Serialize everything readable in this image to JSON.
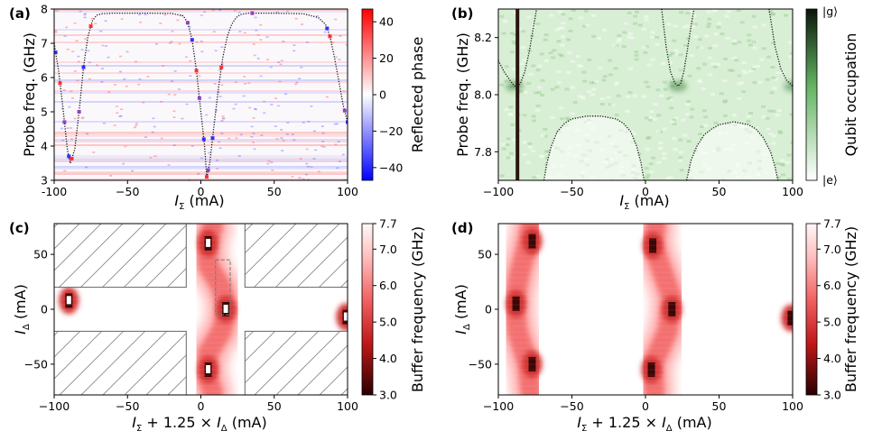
{
  "chart_data": [
    {
      "type": "heatmap",
      "panel": "(a)",
      "xlabel_main": "I",
      "xlabel_sub": "Σ",
      "xlabel_unit": " (mA)",
      "ylabel": "Probe freq. (GHz)",
      "xlim": [
        -100,
        100
      ],
      "ylim": [
        3,
        8
      ],
      "xticks": [
        "-100",
        "−50",
        "0",
        "50",
        "100"
      ],
      "xtick_values": [
        -100,
        -50,
        0,
        50,
        100
      ],
      "yticks": [
        "3",
        "4",
        "5",
        "6",
        "7",
        "8"
      ],
      "ytick_values": [
        3,
        4,
        5,
        6,
        7,
        8
      ],
      "colorbar": {
        "label": "Reflected phase",
        "range": [
          -47,
          47
        ],
        "ticks": [
          "40",
          "20",
          "0",
          "−20",
          "−40"
        ],
        "tick_values": [
          40,
          20,
          0,
          -20,
          -40
        ],
        "colors": [
          "#0000ff",
          "#ffffff",
          "#ff0000"
        ]
      },
      "curve": {
        "x": [
          -100,
          -97,
          -94,
          -91,
          -89,
          -86,
          -83,
          -80,
          -77,
          -74,
          -71,
          -68,
          -60,
          -40,
          -20,
          -12,
          -9,
          -6,
          -3,
          0,
          2.5,
          4,
          6,
          9,
          12,
          15,
          18,
          21,
          24,
          27,
          32,
          50,
          70,
          80,
          85,
          88,
          91,
          94,
          97,
          100
        ],
        "y": [
          7.0,
          6.2,
          5.1,
          3.9,
          3.5,
          3.9,
          5.0,
          6.3,
          7.2,
          7.65,
          7.82,
          7.86,
          7.88,
          7.88,
          7.87,
          7.8,
          7.6,
          7.1,
          6.2,
          5.0,
          4.0,
          3.1,
          3.5,
          4.6,
          5.7,
          6.6,
          7.2,
          7.55,
          7.75,
          7.84,
          7.88,
          7.88,
          7.86,
          7.75,
          7.55,
          7.2,
          6.6,
          5.9,
          5.2,
          4.7
        ]
      }
    },
    {
      "type": "heatmap",
      "panel": "(b)",
      "xlabel_main": "I",
      "xlabel_sub": "Σ",
      "xlabel_unit": " (mA)",
      "ylabel": "Probe freq. (GHz)",
      "xlim": [
        -100,
        100
      ],
      "ylim": [
        7.7,
        8.3
      ],
      "xticks": [
        "−100",
        "−50",
        "0",
        "50",
        "100"
      ],
      "xtick_values": [
        -100,
        -50,
        0,
        50,
        100
      ],
      "yticks": [
        "7.8",
        "8.0",
        "8.2"
      ],
      "ytick_values": [
        7.8,
        8.0,
        8.2
      ],
      "colorbar": {
        "label": "Qubit occupation",
        "top": "|g⟩",
        "bottom": "|e⟩",
        "colors": [
          "#ffffff",
          "#3c9c3c",
          "#0a1a0a"
        ]
      },
      "vertical_line_x": -87,
      "upper_branches": [
        {
          "x": [
            -100,
            -96,
            -92,
            -89,
            -87,
            -85,
            -82,
            -79,
            -76,
            -74
          ],
          "y": [
            8.12,
            8.08,
            8.05,
            8.03,
            8.03,
            8.04,
            8.08,
            8.15,
            8.24,
            8.3
          ]
        },
        {
          "x": [
            11,
            14,
            17,
            20,
            22,
            24,
            26,
            28,
            31,
            33
          ],
          "y": [
            8.3,
            8.17,
            8.08,
            8.04,
            8.03,
            8.04,
            8.08,
            8.14,
            8.24,
            8.3
          ]
        },
        {
          "x": [
            84,
            88,
            92,
            96,
            100
          ],
          "y": [
            8.3,
            8.17,
            8.09,
            8.05,
            8.03
          ]
        }
      ],
      "lower_branches": [
        {
          "x": [
            -69,
            -67,
            -64,
            -60,
            -55,
            -50,
            -40,
            -30,
            -20,
            -15,
            -10,
            -6,
            -3,
            -1
          ],
          "y": [
            7.7,
            7.76,
            7.82,
            7.87,
            7.9,
            7.915,
            7.925,
            7.925,
            7.915,
            7.9,
            7.87,
            7.82,
            7.76,
            7.7
          ]
        },
        {
          "x": [
            28,
            31,
            35,
            40,
            45,
            50,
            60,
            70,
            75,
            80,
            85,
            88,
            90
          ],
          "y": [
            7.7,
            7.77,
            7.82,
            7.86,
            7.88,
            7.895,
            7.905,
            7.895,
            7.88,
            7.85,
            7.8,
            7.75,
            7.7
          ]
        }
      ]
    },
    {
      "type": "heatmap",
      "panel": "(c)",
      "xlabel": "I_Σ + 1.25 × I_Δ (mA)",
      "xlabel_parts": [
        "I",
        "Σ",
        " + 1.25 × ",
        "I",
        "Δ",
        " (mA)"
      ],
      "ylabel_main": "I",
      "ylabel_sub": "Δ",
      "ylabel_unit": " (mA)",
      "xlim": [
        -100,
        100
      ],
      "ylim": [
        -78,
        78
      ],
      "xticks": [
        "−100",
        "−50",
        "0",
        "50",
        "100"
      ],
      "xtick_values": [
        -100,
        -50,
        0,
        50,
        100
      ],
      "yticks": [
        "50",
        "0",
        "−50"
      ],
      "ytick_values": [
        50,
        0,
        -50
      ],
      "colorbar": {
        "label": "Buffer frequency (GHz)",
        "range": [
          3.0,
          7.7
        ],
        "ticks": [
          "7.7",
          "7.0",
          "6.0",
          "5.0",
          "4.0",
          "3.0"
        ],
        "tick_values": [
          7.7,
          7.0,
          6.0,
          5.0,
          4.0,
          3.0
        ],
        "colors": [
          "#2a0000",
          "#e02020",
          "#ff9a9a",
          "#fff5f5"
        ]
      },
      "dip_bands": [
        {
          "points": [
            [
              8,
              75
            ],
            [
              4,
              60
            ],
            [
              5,
              40
            ],
            [
              14,
              20
            ],
            [
              18,
              0
            ],
            [
              14,
              -20
            ],
            [
              5,
              -40
            ],
            [
              4,
              -60
            ],
            [
              8,
              -75
            ]
          ]
        },
        {
          "points": [
            [
              -90,
              20
            ],
            [
              -90,
              0
            ],
            [
              -90,
              -20
            ]
          ]
        },
        {
          "points": [
            [
              100,
              20
            ],
            [
              100,
              -5
            ],
            [
              100,
              -20
            ]
          ]
        }
      ],
      "dips": [
        [
          5,
          60
        ],
        [
          17,
          0
        ],
        [
          5,
          -55
        ],
        [
          -90,
          8
        ],
        [
          99,
          -7
        ]
      ],
      "hatched_regions": [
        {
          "x": [
            -100,
            -10
          ],
          "y": [
            20,
            78
          ]
        },
        {
          "x": [
            30,
            100
          ],
          "y": [
            20,
            78
          ]
        },
        {
          "x": [
            -100,
            -10
          ],
          "y": [
            -78,
            -20
          ]
        },
        {
          "x": [
            30,
            100
          ],
          "y": [
            -78,
            -20
          ]
        }
      ],
      "dashed_box": {
        "x": [
          10,
          20
        ],
        "y": [
          -5,
          45
        ]
      }
    },
    {
      "type": "heatmap",
      "panel": "(d)",
      "xlabel": "I_Σ + 1.25 × I_Δ (mA)",
      "xlabel_parts": [
        "I",
        "Σ",
        " + 1.25 × ",
        "I",
        "Δ",
        " (mA)"
      ],
      "ylabel_main": "I",
      "ylabel_sub": "Δ",
      "ylabel_unit": " (mA)",
      "xlim": [
        -100,
        100
      ],
      "ylim": [
        -78,
        78
      ],
      "xticks": [
        "−100",
        "−50",
        "0",
        "50",
        "100"
      ],
      "xtick_values": [
        -100,
        -50,
        0,
        50,
        100
      ],
      "yticks": [
        "50",
        "0",
        "−50"
      ],
      "ytick_values": [
        50,
        0,
        -50
      ],
      "colorbar": {
        "label": "Buffer frequency (GHz)",
        "range": [
          3.0,
          7.7
        ],
        "ticks": [
          "7.7",
          "7.0",
          "6.0",
          "5.0",
          "4.0",
          "3.0"
        ],
        "tick_values": [
          7.7,
          7.0,
          6.0,
          5.0,
          4.0,
          3.0
        ],
        "colors": [
          "#2a0000",
          "#e02020",
          "#ff9a9a",
          "#fff5f5"
        ]
      },
      "dip_bands": [
        {
          "points": [
            [
              -78,
              75
            ],
            [
              -80,
              60
            ],
            [
              -86,
              30
            ],
            [
              -89,
              5
            ],
            [
              -87,
              -20
            ],
            [
              -80,
              -50
            ],
            [
              -78,
              -75
            ]
          ]
        },
        {
          "points": [
            [
              7,
              75
            ],
            [
              5,
              60
            ],
            [
              10,
              40
            ],
            [
              18,
              10
            ],
            [
              15,
              -20
            ],
            [
              5,
              -50
            ],
            [
              6,
              -75
            ]
          ]
        },
        {
          "points": [
            [
              100,
              20
            ],
            [
              100,
              -8
            ],
            [
              100,
              -20
            ]
          ]
        }
      ],
      "dips": [
        [
          -77,
          62
        ],
        [
          -88,
          5
        ],
        [
          -77,
          -50
        ],
        [
          5,
          58
        ],
        [
          18,
          0
        ],
        [
          4,
          -55
        ],
        [
          99,
          -8
        ]
      ]
    }
  ]
}
